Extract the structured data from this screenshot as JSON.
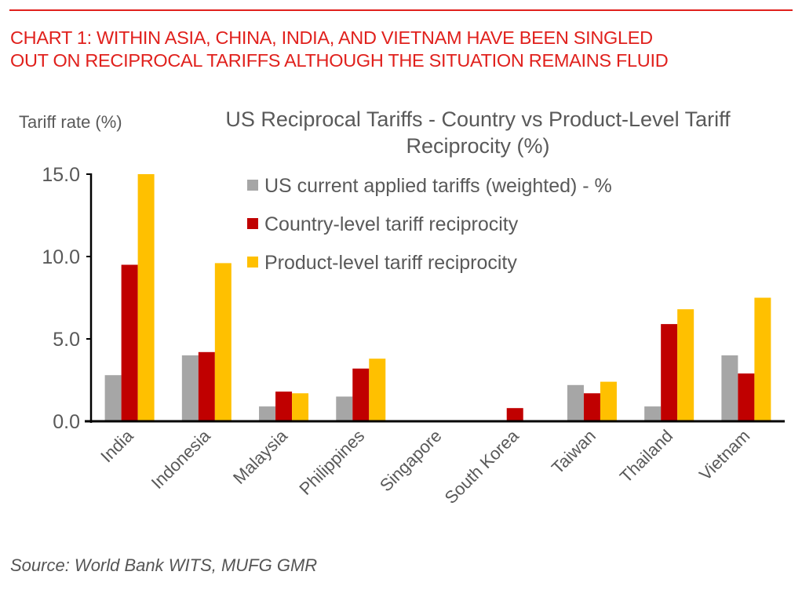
{
  "header": {
    "headline_lines": [
      "CHART 1: WITHIN ASIA, CHINA, INDIA, AND VIETNAM HAVE BEEN SINGLED",
      "OUT ON RECIPROCAL TARIFFS ALTHOUGH THE SITUATION REMAINS FLUID"
    ],
    "accent_color": "#e0201c"
  },
  "footer": {
    "source": "Source: World Bank WITS, MUFG GMR"
  },
  "chart_data": {
    "type": "bar",
    "title_lines": [
      "US Reciprocal Tariffs - Country vs Product-Level Tariff",
      "Reciprocity (%)"
    ],
    "ylabel": "Tariff rate (%)",
    "xlabel": "",
    "ylim": [
      0,
      15
    ],
    "yticks": [
      0,
      5,
      10,
      15
    ],
    "ytick_labels": [
      "0.0",
      "5.0",
      "10.0",
      "15.0"
    ],
    "grid": false,
    "legend_position": "top-center",
    "categories": [
      "India",
      "Indonesia",
      "Malaysia",
      "Philippines",
      "Singapore",
      "South Korea",
      "Taiwan",
      "Thailand",
      "Vietnam"
    ],
    "series": [
      {
        "name": "US current applied tariffs (weighted) - %",
        "color": "#a6a6a6",
        "values": [
          2.8,
          4.0,
          0.9,
          1.5,
          0.0,
          0.0,
          2.2,
          0.9,
          4.0
        ]
      },
      {
        "name": "Country-level tariff reciprocity",
        "color": "#c00000",
        "values": [
          9.5,
          4.2,
          1.8,
          3.2,
          0.0,
          0.8,
          1.7,
          5.9,
          2.9
        ]
      },
      {
        "name": "Product-level tariff reciprocity",
        "color": "#ffc000",
        "values": [
          15.0,
          9.6,
          1.7,
          3.8,
          0.0,
          0.0,
          2.4,
          6.8,
          7.5
        ]
      }
    ]
  }
}
